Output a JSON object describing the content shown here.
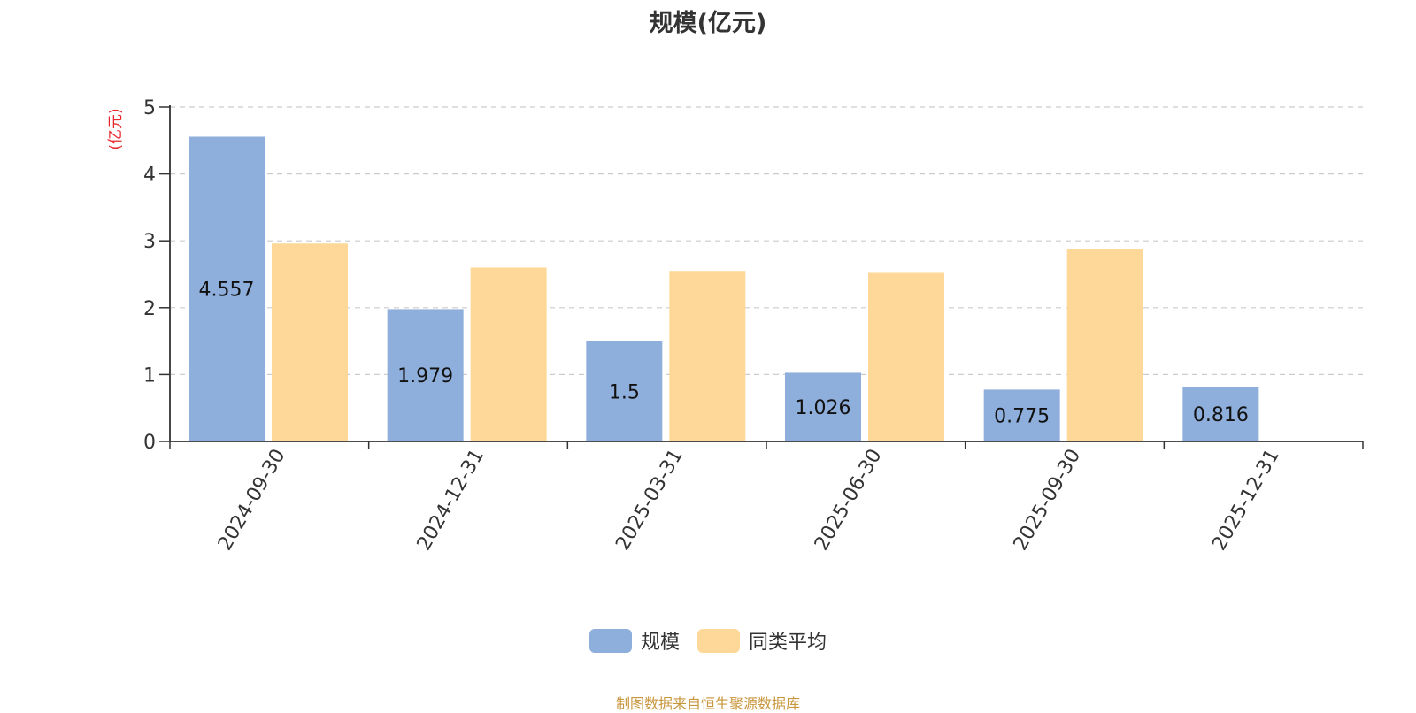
{
  "chart_data": {
    "type": "bar",
    "title": "规模(亿元)",
    "ylabel": "(亿元)",
    "ylim": [
      0,
      5
    ],
    "yticks": [
      0,
      1,
      2,
      3,
      4,
      5
    ],
    "categories": [
      "2024-09-30",
      "2024-12-31",
      "2025-03-31",
      "2025-06-30",
      "2025-09-30",
      "2025-12-31"
    ],
    "series": [
      {
        "name": "规模",
        "color": "#8eaedb",
        "values": [
          4.557,
          1.979,
          1.5,
          1.026,
          0.775,
          0.816
        ],
        "labels": [
          "4.557",
          "1.979",
          "1.5",
          "1.026",
          "0.775",
          "0.816"
        ]
      },
      {
        "name": "同类平均",
        "color": "#fed898",
        "values": [
          2.96,
          2.6,
          2.55,
          2.52,
          2.88,
          null
        ]
      }
    ],
    "grid": "dashed-horizontal",
    "legend": "bottom-center"
  },
  "footer": {
    "source": "制图数据来自恒生聚源数据库"
  }
}
